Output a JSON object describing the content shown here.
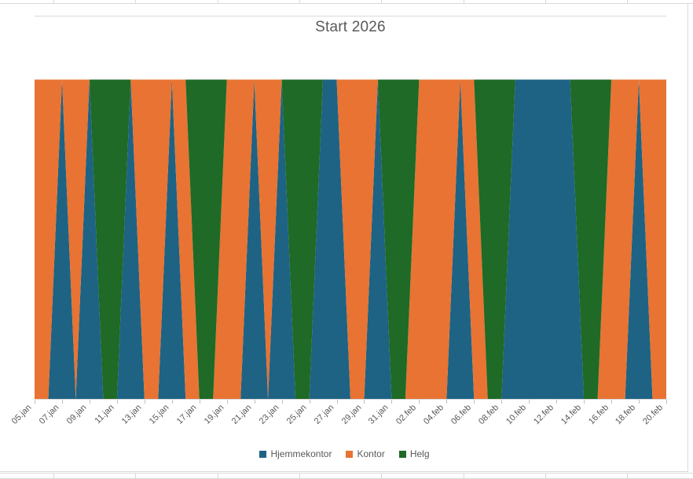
{
  "chart_data": {
    "type": "area",
    "stacked": true,
    "title": "Start 2026",
    "xlabel": "",
    "ylabel": "",
    "ylim": [
      0,
      1.2
    ],
    "grid": "horizontal major (only top gridline visible above areas)",
    "legend_position": "bottom",
    "x_tick_every": 2,
    "categories": [
      "05.jan",
      "06.jan",
      "07.jan",
      "08.jan",
      "09.jan",
      "10.jan",
      "11.jan",
      "12.jan",
      "13.jan",
      "14.jan",
      "15.jan",
      "16.jan",
      "17.jan",
      "18.jan",
      "19.jan",
      "20.jan",
      "21.jan",
      "22.jan",
      "23.jan",
      "24.jan",
      "25.jan",
      "26.jan",
      "27.jan",
      "28.jan",
      "29.jan",
      "30.jan",
      "31.jan",
      "01.feb",
      "02.feb",
      "03.feb",
      "04.feb",
      "05.feb",
      "06.feb",
      "07.feb",
      "08.feb",
      "09.feb",
      "10.feb",
      "11.feb",
      "12.feb",
      "13.feb",
      "14.feb",
      "15.feb",
      "16.feb",
      "17.feb",
      "18.feb",
      "19.feb",
      "20.feb"
    ],
    "x_tick_labels": [
      "05.jan",
      "07.jan",
      "09.jan",
      "11.jan",
      "13.jan",
      "15.jan",
      "17.jan",
      "19.jan",
      "21.jan",
      "23.jan",
      "25.jan",
      "27.jan",
      "29.jan",
      "31.jan",
      "02.feb",
      "04.feb",
      "06.feb",
      "08.feb",
      "10.feb",
      "12.feb",
      "14.feb",
      "16.feb",
      "18.feb",
      "20.feb"
    ],
    "series": [
      {
        "name": "Hjemmekontor",
        "color": "#1E6384",
        "values": [
          0,
          0,
          1,
          0,
          1,
          0,
          0,
          1,
          0,
          0,
          1,
          0,
          0,
          0,
          0,
          0,
          1,
          0,
          1,
          0,
          0,
          1,
          1,
          0,
          0,
          1,
          0,
          0,
          0,
          0,
          0,
          1,
          0,
          0,
          0,
          1,
          1,
          1,
          1,
          1,
          0,
          0,
          0,
          0,
          1,
          0,
          0
        ]
      },
      {
        "name": "Kontor",
        "color": "#E87332",
        "values": [
          1,
          1,
          0,
          1,
          0,
          0,
          0,
          0,
          1,
          1,
          0,
          1,
          0,
          0,
          1,
          1,
          0,
          1,
          0,
          0,
          0,
          0,
          0,
          1,
          1,
          0,
          0,
          0,
          1,
          1,
          1,
          0,
          1,
          0,
          0,
          0,
          0,
          0,
          0,
          0,
          0,
          0,
          1,
          1,
          0,
          1,
          1
        ]
      },
      {
        "name": "Helg",
        "color": "#1E6A26",
        "values": [
          0,
          0,
          0,
          0,
          0,
          1,
          1,
          0,
          0,
          0,
          0,
          0,
          1,
          1,
          0,
          0,
          0,
          0,
          0,
          1,
          1,
          0,
          0,
          0,
          0,
          0,
          1,
          1,
          0,
          0,
          0,
          0,
          0,
          1,
          1,
          0,
          0,
          0,
          0,
          0,
          1,
          1,
          0,
          0,
          0,
          0,
          0
        ]
      }
    ]
  },
  "styles": {
    "title_color": "#595959",
    "axis_label_color": "#595959",
    "gridline_color": "#D9D9D9",
    "background": "#FFFFFF"
  }
}
